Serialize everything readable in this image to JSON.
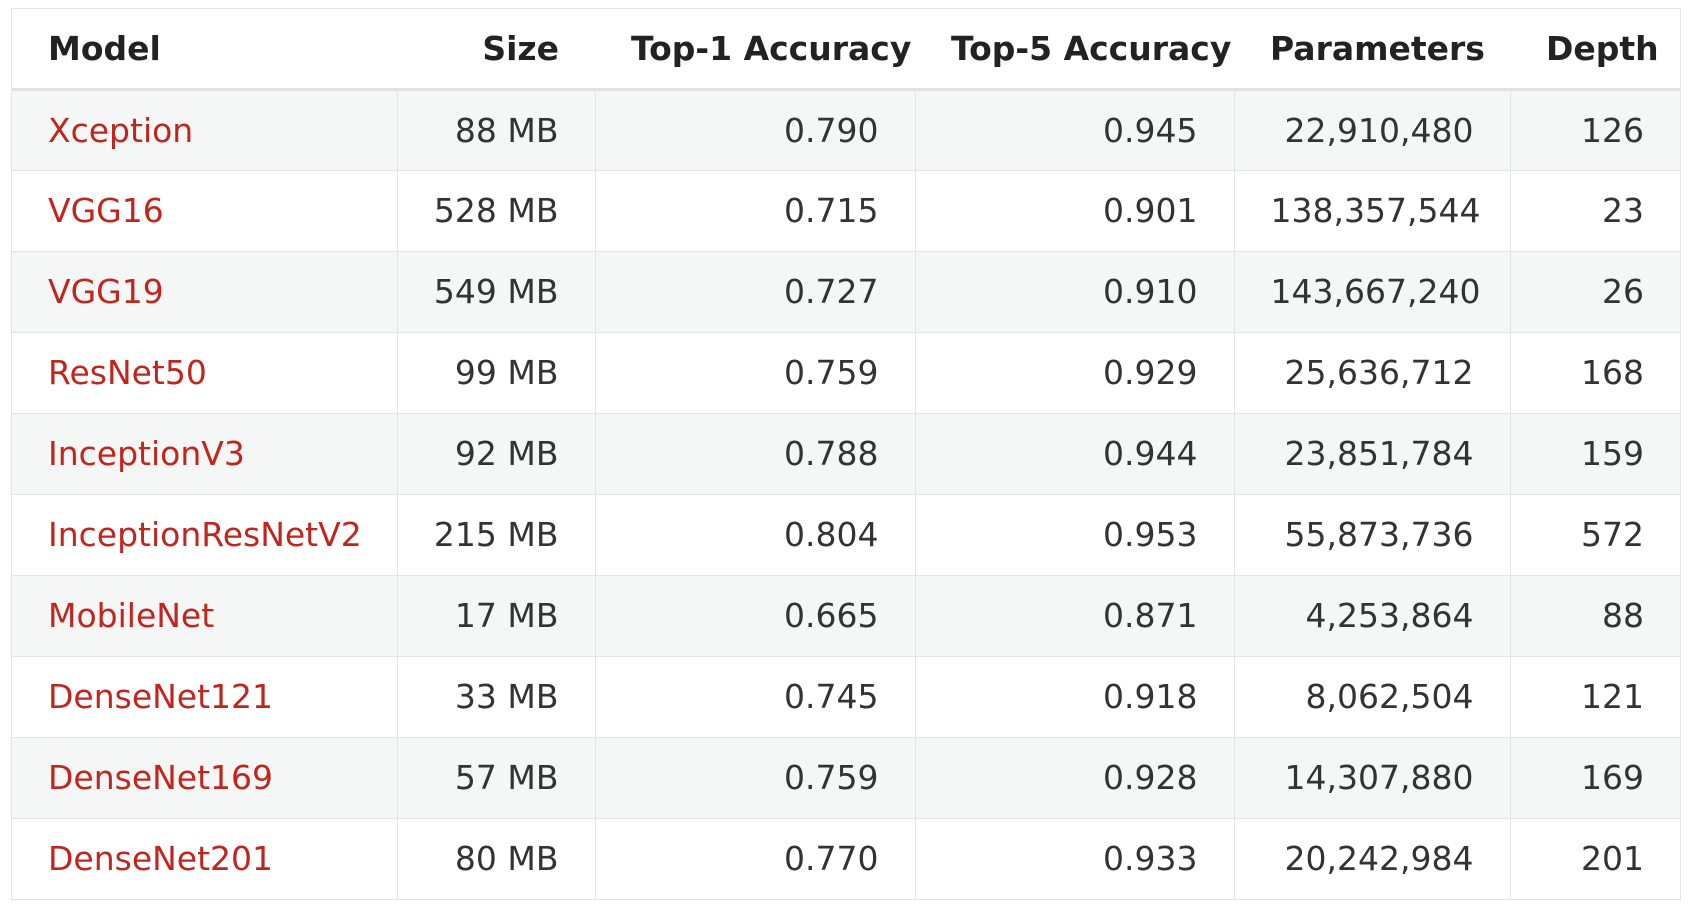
{
  "table": {
    "headers": [
      "Model",
      "Size",
      "Top-1 Accuracy",
      "Top-5 Accuracy",
      "Parameters",
      "Depth"
    ],
    "rows": [
      {
        "model": "Xception",
        "size": "88 MB",
        "top1": "0.790",
        "top5": "0.945",
        "params": "22,910,480",
        "depth": "126"
      },
      {
        "model": "VGG16",
        "size": "528 MB",
        "top1": "0.715",
        "top5": "0.901",
        "params": "138,357,544",
        "depth": "23"
      },
      {
        "model": "VGG19",
        "size": "549 MB",
        "top1": "0.727",
        "top5": "0.910",
        "params": "143,667,240",
        "depth": "26"
      },
      {
        "model": "ResNet50",
        "size": "99 MB",
        "top1": "0.759",
        "top5": "0.929",
        "params": "25,636,712",
        "depth": "168"
      },
      {
        "model": "InceptionV3",
        "size": "92 MB",
        "top1": "0.788",
        "top5": "0.944",
        "params": "23,851,784",
        "depth": "159"
      },
      {
        "model": "InceptionResNetV2",
        "size": "215 MB",
        "top1": "0.804",
        "top5": "0.953",
        "params": "55,873,736",
        "depth": "572"
      },
      {
        "model": "MobileNet",
        "size": "17 MB",
        "top1": "0.665",
        "top5": "0.871",
        "params": "4,253,864",
        "depth": "88"
      },
      {
        "model": "DenseNet121",
        "size": "33 MB",
        "top1": "0.745",
        "top5": "0.918",
        "params": "8,062,504",
        "depth": "121"
      },
      {
        "model": "DenseNet169",
        "size": "57 MB",
        "top1": "0.759",
        "top5": "0.928",
        "params": "14,307,880",
        "depth": "169"
      },
      {
        "model": "DenseNet201",
        "size": "80 MB",
        "top1": "0.770",
        "top5": "0.933",
        "params": "20,242,984",
        "depth": "201"
      }
    ]
  },
  "colors": {
    "link": "#c0261e",
    "text": "#333333",
    "header_text": "#222222",
    "stripe": "#f5f6f6",
    "border": "#e4e4e4"
  }
}
